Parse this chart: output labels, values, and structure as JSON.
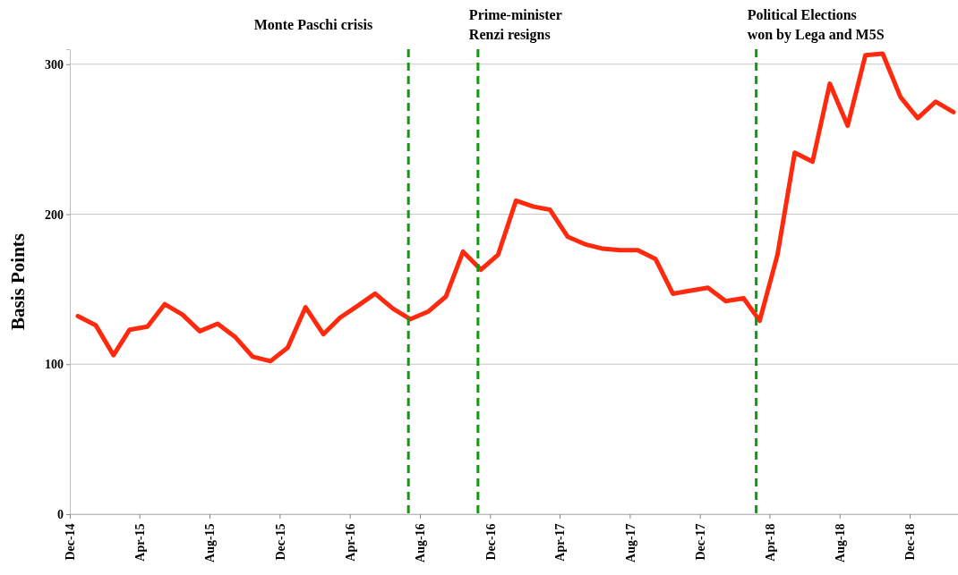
{
  "chart_data": {
    "type": "line",
    "ylabel": "Basis Points",
    "x": [
      "2014-12-15",
      "2015-01-15",
      "2015-02-15",
      "2015-03-15",
      "2015-04-15",
      "2015-05-15",
      "2015-06-15",
      "2015-07-15",
      "2015-08-15",
      "2015-09-15",
      "2015-10-15",
      "2015-11-15",
      "2015-12-15",
      "2016-01-15",
      "2016-02-15",
      "2016-03-15",
      "2016-04-15",
      "2016-05-15",
      "2016-06-15",
      "2016-07-15",
      "2016-08-15",
      "2016-09-15",
      "2016-10-15",
      "2016-11-15",
      "2016-12-15",
      "2017-01-15",
      "2017-02-15",
      "2017-03-15",
      "2017-04-15",
      "2017-05-15",
      "2017-06-15",
      "2017-07-15",
      "2017-08-15",
      "2017-09-15",
      "2017-10-15",
      "2017-11-15",
      "2017-12-15",
      "2018-01-15",
      "2018-02-15",
      "2018-03-15",
      "2018-04-15",
      "2018-05-15",
      "2018-06-15",
      "2018-07-15",
      "2018-08-15",
      "2018-09-15",
      "2018-10-15",
      "2018-11-15",
      "2018-12-15",
      "2019-01-15",
      "2019-02-15"
    ],
    "series": [
      {
        "color": "#ff2a0e",
        "values": [
          132,
          126,
          106,
          123,
          125,
          140,
          133,
          122,
          127,
          118,
          105,
          102,
          111,
          138,
          120,
          131,
          139,
          147,
          137,
          130,
          135,
          145,
          175,
          163,
          173,
          209,
          205,
          203,
          185,
          180,
          177,
          176,
          176,
          170,
          147,
          149,
          151,
          142,
          144,
          129,
          173,
          241,
          235,
          287,
          259,
          306,
          307,
          278,
          264,
          275,
          268
        ]
      }
    ],
    "xlim": [
      "2014-12-01",
      "2019-02-23"
    ],
    "xticks": [
      {
        "value": "2014-12-01",
        "label": "Dec-14"
      },
      {
        "value": "2015-04-01",
        "label": "Apr-15"
      },
      {
        "value": "2015-08-01",
        "label": "Aug-15"
      },
      {
        "value": "2015-12-01",
        "label": "Dec-15"
      },
      {
        "value": "2016-04-01",
        "label": "Apr-16"
      },
      {
        "value": "2016-08-01",
        "label": "Aug-16"
      },
      {
        "value": "2016-12-01",
        "label": "Dec-16"
      },
      {
        "value": "2017-04-01",
        "label": "Apr-17"
      },
      {
        "value": "2017-08-01",
        "label": "Aug-17"
      },
      {
        "value": "2017-12-01",
        "label": "Dec-17"
      },
      {
        "value": "2018-04-01",
        "label": "Apr-18"
      },
      {
        "value": "2018-08-01",
        "label": "Aug-18"
      },
      {
        "value": "2018-12-01",
        "label": "Dec-18"
      }
    ],
    "ylim": [
      0,
      310
    ],
    "yticks": [
      0,
      100,
      200,
      300
    ],
    "grid": "y",
    "line_style": "solid",
    "ref_lines": [
      {
        "axis": "x",
        "value": "2016-07-12",
        "label": "Monte Paschi crisis",
        "color": "#119911",
        "line_style": "dashed"
      },
      {
        "axis": "x",
        "value": "2016-11-10",
        "label": "Prime-minister\nRenzi resigns",
        "color": "#119911",
        "line_style": "dashed"
      },
      {
        "axis": "x",
        "value": "2018-03-09",
        "label": "Political Elections\nwon by Lega and M5S",
        "color": "#119911",
        "line_style": "dashed"
      }
    ]
  }
}
